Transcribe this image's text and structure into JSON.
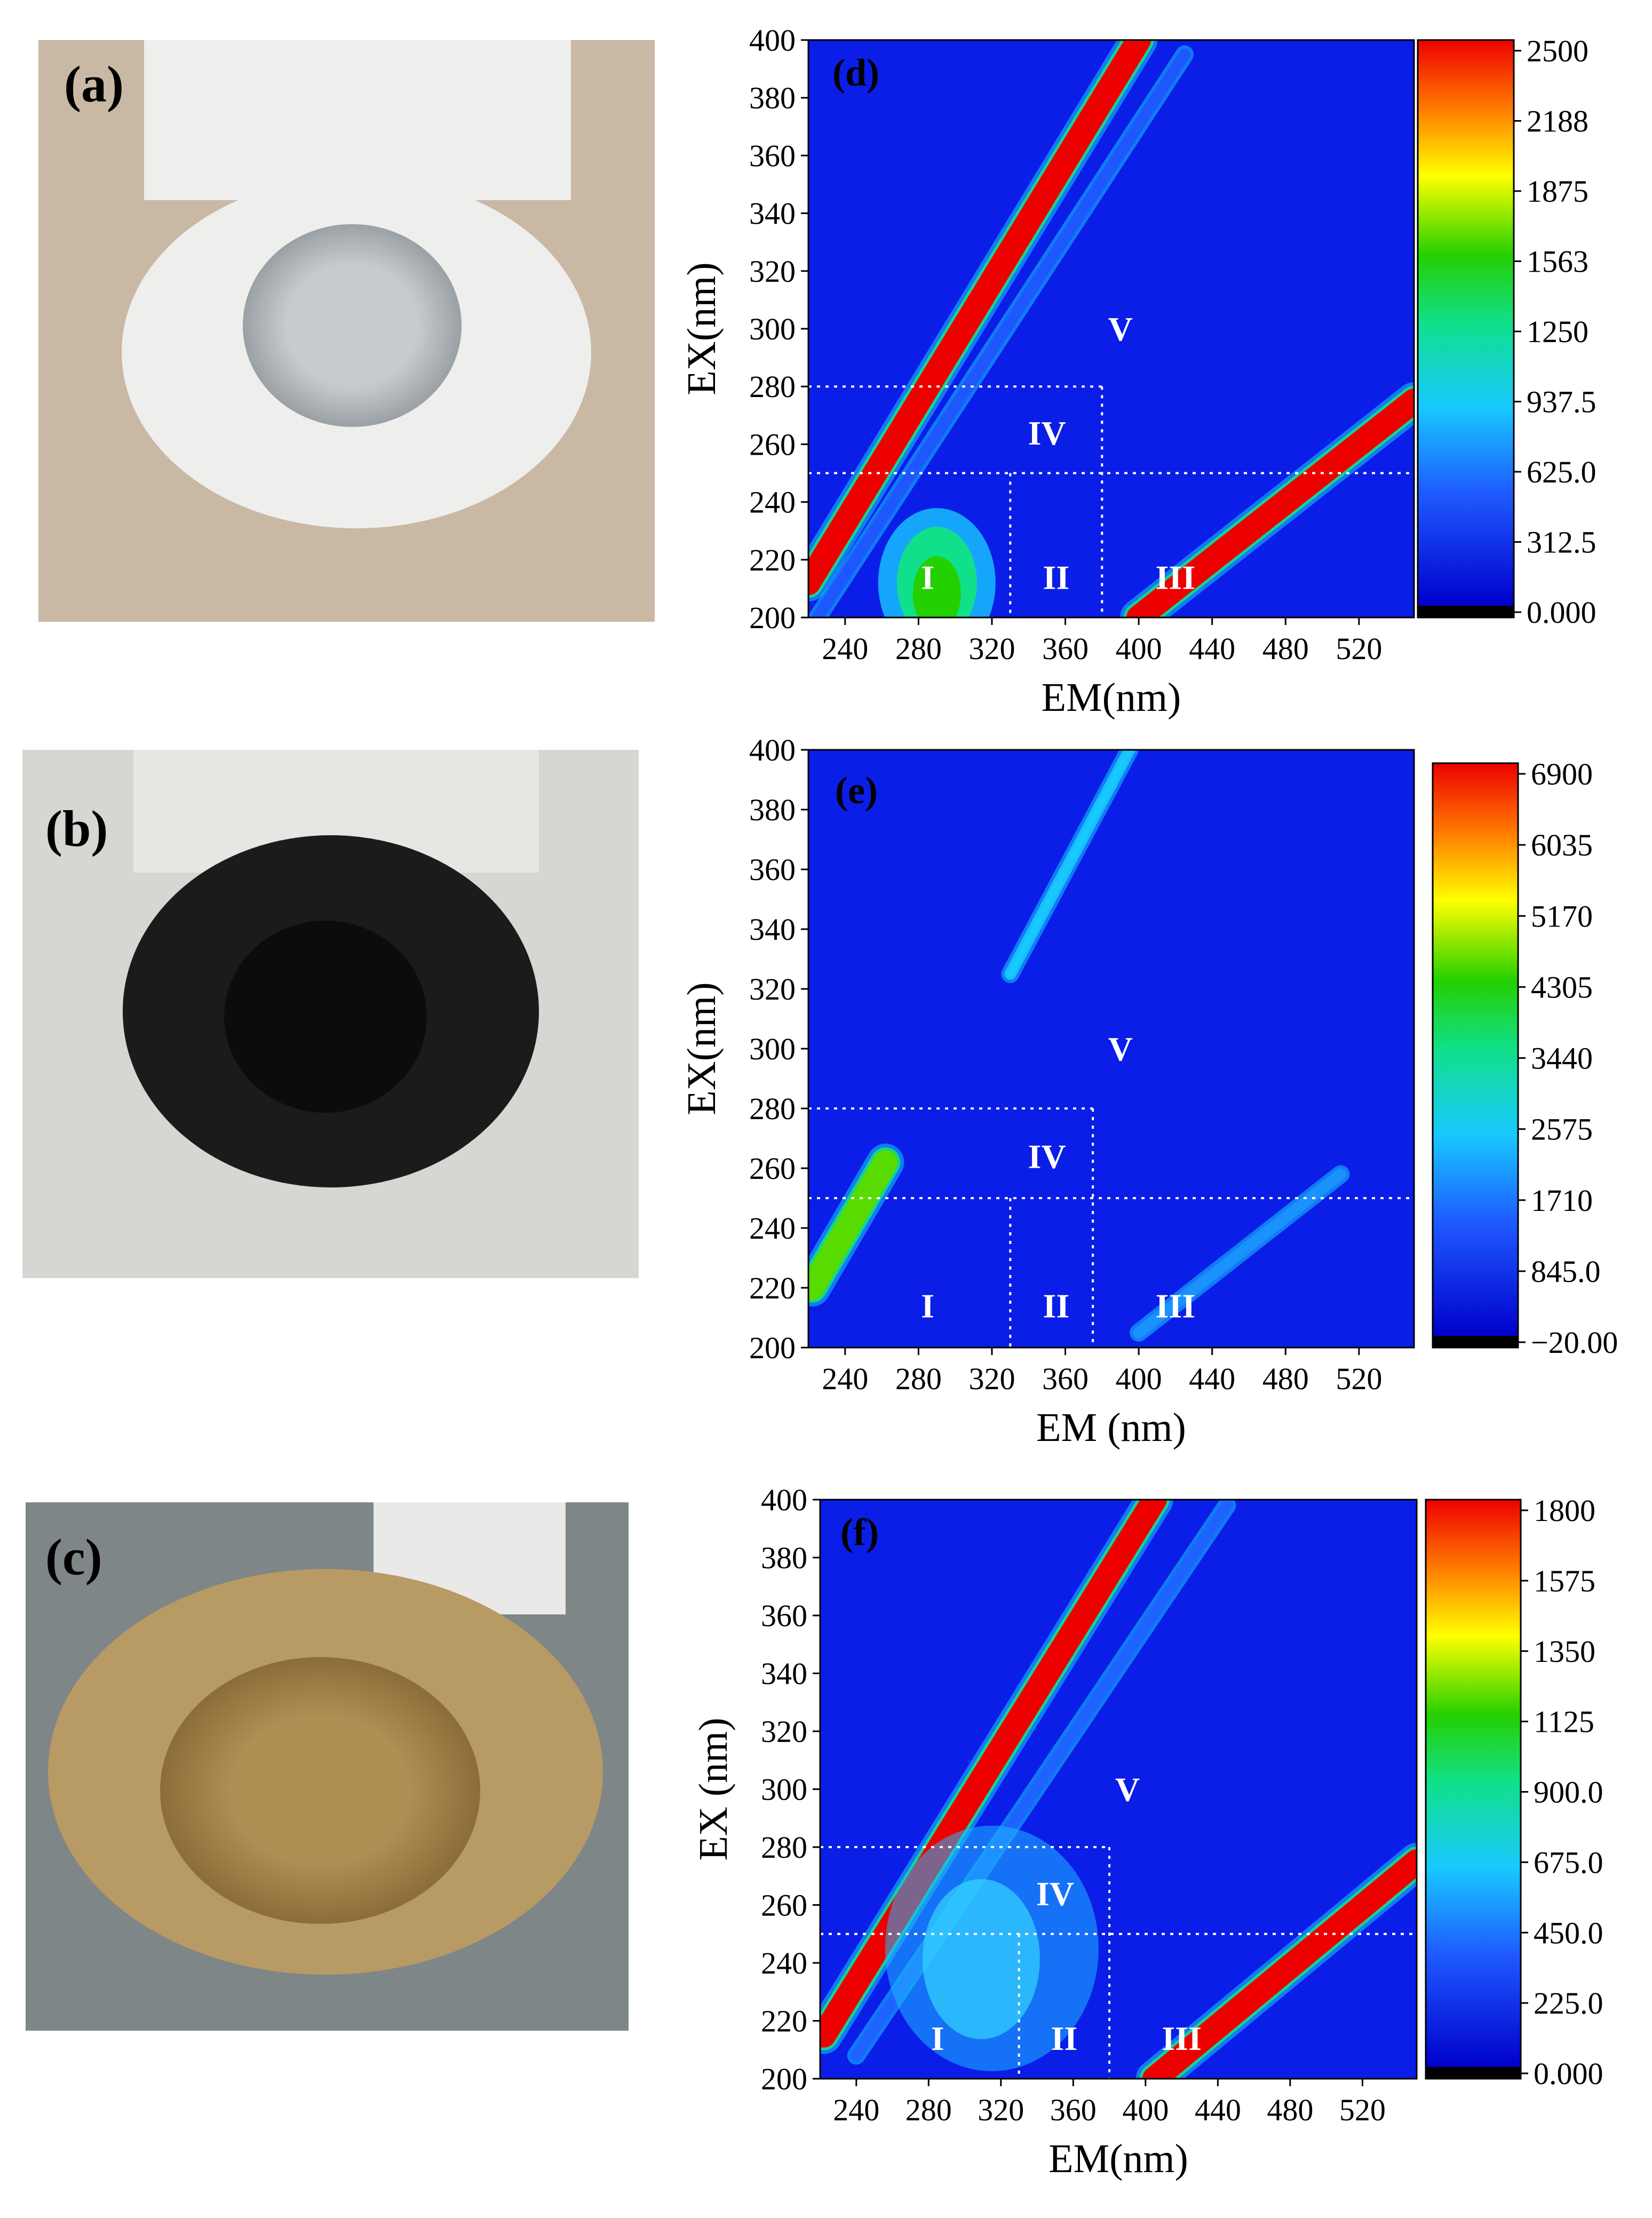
{
  "photos": [
    {
      "label": "(a)",
      "subject": "white ceramic membrane tube, cross-section",
      "colors": {
        "background": "#c9b8a4",
        "tube": "#eeeeec",
        "bore": "#cfd3d6"
      }
    },
    {
      "label": "(b)",
      "subject": "black fouled membrane tube, cross-section",
      "colors": {
        "background": "#d8d6d2",
        "tube": "#1c1a1b",
        "bore": "#0d0c0d"
      }
    },
    {
      "label": "(c)",
      "subject": "yellowish coated membrane tube, cross-section",
      "colors": {
        "background": "#7f8688",
        "tube": "#b89a64",
        "bore": "#a88a52"
      }
    }
  ],
  "chart_data": [
    {
      "type": "heatmap",
      "panel_label": "(d)",
      "xlabel": "EM(nm)",
      "ylabel": "EX(nm)",
      "xlim": [
        220,
        550
      ],
      "ylim": [
        200,
        400
      ],
      "xticks": [
        "240",
        "280",
        "320",
        "360",
        "400",
        "440",
        "480",
        "520"
      ],
      "yticks": [
        "200",
        "220",
        "240",
        "260",
        "280",
        "300",
        "320",
        "340",
        "360",
        "380",
        "400"
      ],
      "colorbar_ticks": [
        "0.000",
        "312.5",
        "625.0",
        "937.5",
        "1250",
        "1563",
        "1875",
        "2188",
        "2500"
      ],
      "colorbar_range": [
        0,
        2500
      ],
      "regions": [
        "I",
        "II",
        "III",
        "IV",
        "V"
      ],
      "region_bounds": {
        "em_splits": [
          330,
          380
        ],
        "ex_splits": [
          250,
          280
        ]
      },
      "features": [
        {
          "name": "first-order Rayleigh scatter",
          "em_start": 220,
          "ex_start": 212,
          "em_end": 400,
          "ex_end": 400,
          "intensity": 2500
        },
        {
          "name": "Raman scatter",
          "em_start": 225,
          "ex_start": 200,
          "em_end": 425,
          "ex_end": 395,
          "intensity": 480
        },
        {
          "name": "second-order scatter",
          "em_start": 400,
          "ex_start": 200,
          "em_end": 550,
          "ex_end": 275,
          "intensity": 2500
        },
        {
          "name": "peak region I",
          "em": 290,
          "ex": 212,
          "intensity": 2300
        }
      ]
    },
    {
      "type": "heatmap",
      "panel_label": "(e)",
      "xlabel": "EM (nm)",
      "ylabel": "EX(nm)",
      "xlim": [
        220,
        550
      ],
      "ylim": [
        200,
        400
      ],
      "xticks": [
        "240",
        "280",
        "320",
        "360",
        "400",
        "440",
        "480",
        "520"
      ],
      "yticks": [
        "200",
        "220",
        "240",
        "260",
        "280",
        "300",
        "320",
        "340",
        "360",
        "380",
        "400"
      ],
      "colorbar_ticks": [
        "−20.00",
        "845.0",
        "1710",
        "2575",
        "3440",
        "4305",
        "5170",
        "6035",
        "6900"
      ],
      "colorbar_range": [
        -20,
        6900
      ],
      "regions": [
        "I",
        "II",
        "III",
        "IV",
        "V"
      ],
      "region_bounds": {
        "em_splits": [
          330,
          375
        ],
        "ex_splits": [
          250,
          280
        ]
      },
      "features": [
        {
          "name": "scatter segment (upper)",
          "em_start": 330,
          "ex_start": 325,
          "em_end": 395,
          "ex_end": 400,
          "intensity": 2400
        },
        {
          "name": "scatter segment (lower left)",
          "em_start": 222,
          "ex_start": 220,
          "em_end": 262,
          "ex_end": 262,
          "intensity": 4500
        },
        {
          "name": "second-order scatter",
          "em_start": 400,
          "ex_start": 205,
          "em_end": 510,
          "ex_end": 258,
          "intensity": 1900
        }
      ]
    },
    {
      "type": "heatmap",
      "panel_label": "(f)",
      "xlabel": "EM(nm)",
      "ylabel": "EX (nm)",
      "xlim": [
        220,
        550
      ],
      "ylim": [
        200,
        400
      ],
      "xticks": [
        "240",
        "280",
        "320",
        "360",
        "400",
        "440",
        "480",
        "520"
      ],
      "yticks": [
        "200",
        "220",
        "240",
        "260",
        "280",
        "300",
        "320",
        "340",
        "360",
        "380",
        "400"
      ],
      "colorbar_ticks": [
        "0.000",
        "225.0",
        "450.0",
        "675.0",
        "900.0",
        "1125",
        "1350",
        "1575",
        "1800"
      ],
      "colorbar_range": [
        0,
        1800
      ],
      "regions": [
        "I",
        "II",
        "III",
        "IV",
        "V"
      ],
      "region_bounds": {
        "em_splits": [
          330,
          380
        ],
        "ex_splits": [
          250,
          280
        ]
      },
      "features": [
        {
          "name": "first-order Rayleigh scatter",
          "em_start": 222,
          "ex_start": 215,
          "em_end": 405,
          "ex_end": 400,
          "intensity": 1800
        },
        {
          "name": "Raman scatter",
          "em_start": 240,
          "ex_start": 208,
          "em_end": 445,
          "ex_end": 398,
          "intensity": 380
        },
        {
          "name": "second-order scatter",
          "em_start": 405,
          "ex_start": 200,
          "em_end": 550,
          "ex_end": 275,
          "intensity": 1800
        },
        {
          "name": "broad fluorescence region IV/II",
          "em": 315,
          "ex": 245,
          "intensity": 420
        }
      ]
    }
  ],
  "colormap": [
    "#000000",
    "#0000ff",
    "#0066ff",
    "#00ccff",
    "#00ff66",
    "#66ff00",
    "#ffff00",
    "#ff8000",
    "#ff0000"
  ]
}
